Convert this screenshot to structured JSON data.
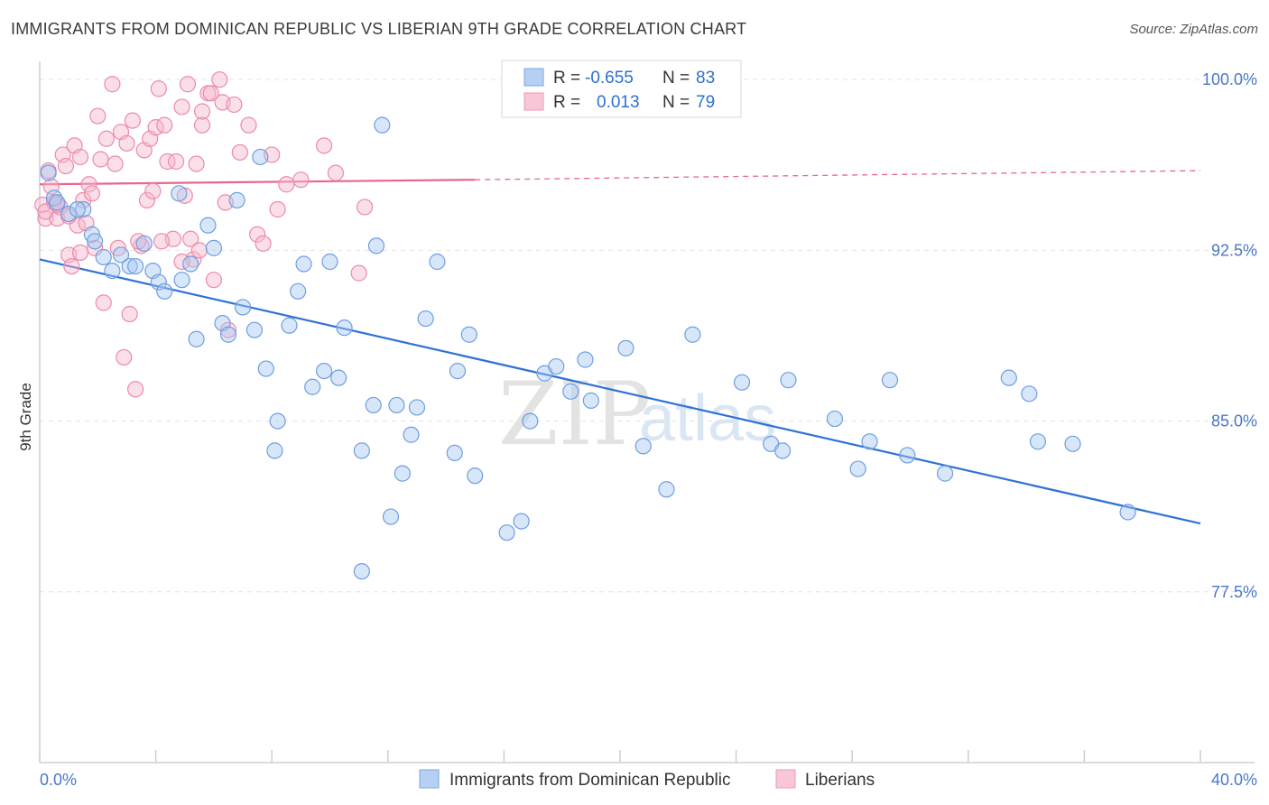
{
  "title": "IMMIGRANTS FROM DOMINICAN REPUBLIC VS LIBERIAN 9TH GRADE CORRELATION CHART",
  "source": "Source: ZipAtlas.com",
  "watermark": {
    "zip": "ZIP",
    "atlas": "atlas"
  },
  "legend_box": {
    "rows": [
      {
        "r_label": "R =",
        "r_value": "-0.655",
        "n_label": "N =",
        "n_value": "83"
      },
      {
        "r_label": "R =",
        "r_value": "0.013",
        "n_label": "N =",
        "n_value": "79"
      }
    ]
  },
  "bottom_legend": {
    "items": [
      "Immigrants from Dominican Republic",
      "Liberians"
    ]
  },
  "chart_data": {
    "type": "scatter",
    "title": "IMMIGRANTS FROM DOMINICAN REPUBLIC VS LIBERIAN 9TH GRADE CORRELATION CHART",
    "xlabel": "",
    "ylabel": "9th Grade",
    "xlim": [
      0,
      40
    ],
    "ylim": [
      70,
      100.8
    ],
    "x_tick_labels": [
      "0.0%",
      "40.0%"
    ],
    "y_ticks": [
      77.5,
      85.0,
      92.5,
      100.0
    ],
    "y_tick_labels": [
      "77.5%",
      "85.0%",
      "92.5%",
      "100.0%"
    ],
    "grid": true,
    "legend_position": "top-center",
    "colors": {
      "blue_fill": "#a9c8f2",
      "blue_stroke": "#6d9fe0",
      "blue_line": "#2f72d6",
      "pink_fill": "#f6b8cc",
      "pink_stroke": "#ec8aaa",
      "pink_line": "#e8668f"
    },
    "series": [
      {
        "name": "Immigrants from Dominican Republic",
        "color": "blue",
        "trend": {
          "x": [
            0,
            40
          ],
          "y": [
            92.1,
            80.5
          ]
        },
        "points": [
          [
            0.3,
            95.9
          ],
          [
            0.5,
            94.8
          ],
          [
            0.6,
            94.6
          ],
          [
            1.0,
            94.1
          ],
          [
            1.5,
            94.3
          ],
          [
            1.8,
            93.2
          ],
          [
            1.9,
            92.9
          ],
          [
            2.2,
            92.2
          ],
          [
            2.5,
            91.6
          ],
          [
            2.8,
            92.3
          ],
          [
            3.1,
            91.8
          ],
          [
            3.3,
            91.8
          ],
          [
            3.6,
            92.8
          ],
          [
            3.9,
            91.6
          ],
          [
            4.1,
            91.1
          ],
          [
            4.3,
            90.7
          ],
          [
            4.8,
            95.0
          ],
          [
            4.9,
            91.2
          ],
          [
            5.2,
            91.9
          ],
          [
            5.4,
            88.6
          ],
          [
            5.8,
            93.6
          ],
          [
            6.0,
            92.6
          ],
          [
            6.3,
            89.3
          ],
          [
            6.5,
            88.8
          ],
          [
            6.8,
            94.7
          ],
          [
            7.0,
            90.0
          ],
          [
            7.4,
            89.0
          ],
          [
            7.6,
            96.6
          ],
          [
            7.8,
            87.3
          ],
          [
            8.2,
            85.0
          ],
          [
            8.1,
            83.7
          ],
          [
            8.6,
            89.2
          ],
          [
            8.9,
            90.7
          ],
          [
            9.1,
            91.9
          ],
          [
            9.4,
            86.5
          ],
          [
            9.8,
            87.2
          ],
          [
            10.0,
            92.0
          ],
          [
            10.3,
            86.9
          ],
          [
            10.5,
            89.1
          ],
          [
            11.1,
            83.7
          ],
          [
            11.5,
            85.7
          ],
          [
            11.1,
            78.4
          ],
          [
            11.6,
            92.7
          ],
          [
            11.8,
            98.0
          ],
          [
            12.1,
            80.8
          ],
          [
            12.3,
            85.7
          ],
          [
            12.5,
            82.7
          ],
          [
            12.8,
            84.4
          ],
          [
            13.0,
            85.6
          ],
          [
            13.3,
            89.5
          ],
          [
            13.7,
            92.0
          ],
          [
            14.3,
            83.6
          ],
          [
            14.4,
            87.2
          ],
          [
            14.8,
            88.8
          ],
          [
            15.0,
            82.6
          ],
          [
            16.1,
            80.1
          ],
          [
            16.6,
            80.6
          ],
          [
            16.9,
            85.0
          ],
          [
            17.4,
            87.1
          ],
          [
            17.8,
            87.4
          ],
          [
            18.3,
            86.3
          ],
          [
            18.8,
            87.7
          ],
          [
            19.0,
            85.9
          ],
          [
            20.2,
            88.2
          ],
          [
            20.8,
            83.9
          ],
          [
            21.6,
            82.0
          ],
          [
            22.5,
            88.8
          ],
          [
            24.2,
            86.7
          ],
          [
            25.2,
            84.0
          ],
          [
            25.6,
            83.7
          ],
          [
            25.8,
            86.8
          ],
          [
            27.4,
            85.1
          ],
          [
            28.2,
            82.9
          ],
          [
            28.6,
            84.1
          ],
          [
            29.3,
            86.8
          ],
          [
            29.9,
            83.5
          ],
          [
            31.2,
            82.7
          ],
          [
            33.4,
            86.9
          ],
          [
            34.1,
            86.2
          ],
          [
            34.4,
            84.1
          ],
          [
            35.6,
            84.0
          ],
          [
            37.5,
            81.0
          ],
          [
            1.3,
            94.3
          ]
        ]
      },
      {
        "name": "Liberians",
        "color": "pink",
        "trend": {
          "x": [
            0,
            15.0
          ],
          "y": [
            95.4,
            95.6
          ],
          "dashed_to": [
            40,
            96.0
          ]
        },
        "points": [
          [
            0.1,
            94.5
          ],
          [
            0.2,
            93.9
          ],
          [
            0.3,
            96.0
          ],
          [
            0.4,
            95.3
          ],
          [
            0.5,
            94.6
          ],
          [
            0.6,
            93.9
          ],
          [
            0.7,
            94.4
          ],
          [
            0.8,
            96.7
          ],
          [
            0.9,
            96.2
          ],
          [
            1.0,
            92.3
          ],
          [
            1.1,
            91.8
          ],
          [
            1.2,
            97.1
          ],
          [
            1.3,
            93.6
          ],
          [
            1.4,
            96.6
          ],
          [
            1.5,
            94.7
          ],
          [
            1.6,
            93.7
          ],
          [
            1.7,
            95.4
          ],
          [
            1.8,
            95.0
          ],
          [
            1.9,
            92.6
          ],
          [
            2.0,
            98.4
          ],
          [
            2.1,
            96.5
          ],
          [
            2.2,
            90.2
          ],
          [
            2.3,
            97.4
          ],
          [
            2.5,
            99.8
          ],
          [
            2.6,
            96.3
          ],
          [
            2.8,
            97.7
          ],
          [
            2.9,
            87.8
          ],
          [
            3.0,
            97.2
          ],
          [
            3.1,
            89.7
          ],
          [
            3.2,
            98.2
          ],
          [
            3.3,
            86.4
          ],
          [
            3.5,
            92.7
          ],
          [
            3.6,
            96.9
          ],
          [
            3.7,
            94.7
          ],
          [
            3.8,
            97.4
          ],
          [
            3.9,
            95.1
          ],
          [
            4.0,
            97.9
          ],
          [
            4.1,
            99.6
          ],
          [
            4.3,
            98.0
          ],
          [
            4.4,
            96.4
          ],
          [
            4.6,
            93.0
          ],
          [
            4.7,
            96.4
          ],
          [
            4.9,
            98.8
          ],
          [
            5.0,
            94.9
          ],
          [
            5.1,
            99.8
          ],
          [
            5.2,
            93.0
          ],
          [
            5.3,
            92.1
          ],
          [
            5.4,
            96.3
          ],
          [
            5.5,
            92.5
          ],
          [
            5.6,
            98.0
          ],
          [
            5.8,
            99.4
          ],
          [
            5.9,
            99.4
          ],
          [
            6.0,
            91.2
          ],
          [
            6.2,
            100.0
          ],
          [
            6.3,
            99.0
          ],
          [
            6.4,
            94.6
          ],
          [
            6.5,
            89.0
          ],
          [
            6.7,
            98.9
          ],
          [
            6.9,
            96.8
          ],
          [
            7.2,
            98.0
          ],
          [
            7.5,
            93.2
          ],
          [
            7.7,
            92.8
          ],
          [
            8.0,
            96.7
          ],
          [
            8.2,
            94.3
          ],
          [
            8.5,
            95.4
          ],
          [
            9.0,
            95.6
          ],
          [
            9.8,
            97.1
          ],
          [
            10.2,
            95.9
          ],
          [
            11.0,
            91.5
          ],
          [
            11.2,
            94.4
          ],
          [
            0.2,
            94.2
          ],
          [
            0.6,
            94.5
          ],
          [
            1.0,
            94.0
          ],
          [
            1.4,
            92.4
          ],
          [
            2.7,
            92.6
          ],
          [
            3.4,
            92.9
          ],
          [
            4.2,
            92.9
          ],
          [
            4.9,
            92.0
          ],
          [
            5.6,
            98.6
          ]
        ]
      }
    ]
  }
}
